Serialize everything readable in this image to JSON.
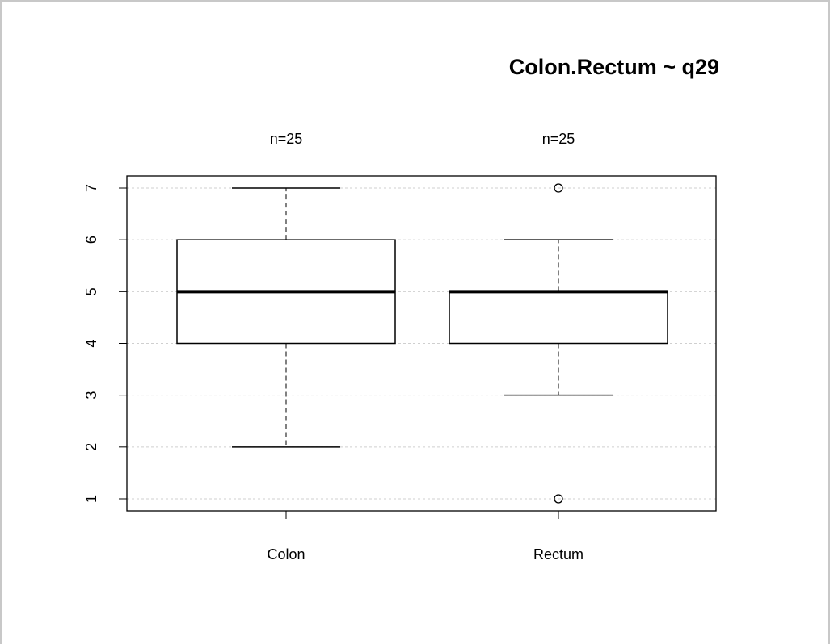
{
  "chart_data": {
    "type": "box",
    "title": "Colon.Rectum ~ q29",
    "categories": [
      "Colon",
      "Rectum"
    ],
    "n_labels": [
      "n=25",
      "n=25"
    ],
    "boxes": [
      {
        "whislo": 2,
        "q1": 4,
        "med": 5,
        "q3": 6,
        "whishi": 7,
        "fliers": []
      },
      {
        "whislo": 3,
        "q1": 4,
        "med": 5,
        "q3": 5,
        "whishi": 6,
        "fliers": [
          7,
          1
        ]
      }
    ],
    "color": "#000000",
    "ylim": [
      0.766,
      7.234
    ],
    "yticks": [
      1,
      2,
      3,
      4,
      5,
      6,
      7
    ],
    "grid": true
  }
}
